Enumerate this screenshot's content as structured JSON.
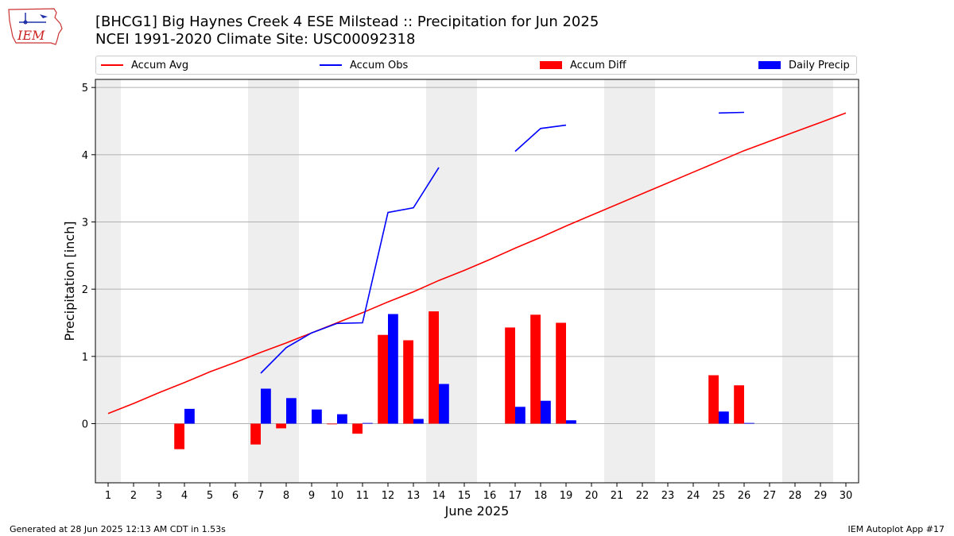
{
  "header": {
    "title_line1": "[BHCG1] Big Haynes Creek 4 ESE Milstead :: Precipitation for Jun 2025",
    "title_line2": "NCEI 1991-2020 Climate Site: USC00092318",
    "logo_text": "IEM"
  },
  "footer": {
    "left": "Generated at 28 Jun 2025 12:13 AM CDT in 1.53s",
    "right": "IEM Autoplot App #17"
  },
  "colors": {
    "accum_avg": "#ff0000",
    "accum_obs": "#0000ff",
    "accum_diff": "#ff0000",
    "daily_precip": "#0000ff",
    "weekend_shade": "#eeeeee",
    "grid": "#b0b0b0"
  },
  "chart_data": {
    "type": "bar",
    "xlabel": "June 2025",
    "ylabel": "Precipitation [inch]",
    "x": [
      1,
      2,
      3,
      4,
      5,
      6,
      7,
      8,
      9,
      10,
      11,
      12,
      13,
      14,
      15,
      16,
      17,
      18,
      19,
      20,
      21,
      22,
      23,
      24,
      25,
      26,
      27,
      28,
      29,
      30
    ],
    "x_tick_labels": [
      "1",
      "2",
      "3",
      "4",
      "5",
      "6",
      "7",
      "8",
      "9",
      "10",
      "11",
      "12",
      "13",
      "14",
      "15",
      "16",
      "17",
      "18",
      "19",
      "20",
      "21",
      "22",
      "23",
      "24",
      "25",
      "26",
      "27",
      "28",
      "29",
      "30"
    ],
    "xlim": [
      0.5,
      30.5
    ],
    "ylim": [
      -0.88,
      5.12
    ],
    "y_ticks": [
      0,
      1,
      2,
      3,
      4,
      5
    ],
    "y_tick_labels": [
      "0",
      "1",
      "2",
      "3",
      "4",
      "5"
    ],
    "grid": "horizontal",
    "legend_position": "top",
    "shaded_days": [
      1,
      7,
      8,
      14,
      15,
      21,
      22,
      28,
      29
    ],
    "legend": [
      "Accum Avg",
      "Accum Obs",
      "Accum Diff",
      "Daily Precip"
    ],
    "series": [
      {
        "name": "Accum Avg",
        "kind": "line",
        "color": "#ff0000",
        "values": [
          0.15,
          0.3,
          0.46,
          0.61,
          0.77,
          0.91,
          1.06,
          1.2,
          1.35,
          1.5,
          1.65,
          1.81,
          1.96,
          2.13,
          2.28,
          2.44,
          2.61,
          2.77,
          2.94,
          3.1,
          3.26,
          3.42,
          3.58,
          3.74,
          3.9,
          4.06,
          4.2,
          4.34,
          4.48,
          4.62
        ]
      },
      {
        "name": "Accum Obs",
        "kind": "line",
        "color": "#0000ff",
        "values": [
          null,
          null,
          null,
          null,
          null,
          null,
          0.75,
          1.13,
          1.35,
          1.49,
          1.5,
          3.14,
          3.21,
          3.81,
          null,
          null,
          4.05,
          4.39,
          4.44,
          null,
          null,
          null,
          null,
          null,
          4.62,
          4.63,
          null,
          null,
          null,
          null
        ]
      },
      {
        "name": "Accum Diff",
        "kind": "bar",
        "color": "#ff0000",
        "values": [
          null,
          null,
          null,
          -0.38,
          null,
          null,
          -0.31,
          -0.07,
          null,
          -0.01,
          -0.15,
          1.32,
          1.24,
          1.67,
          null,
          null,
          1.43,
          1.62,
          1.5,
          null,
          null,
          null,
          null,
          null,
          0.72,
          0.57,
          null,
          null,
          null,
          null
        ]
      },
      {
        "name": "Daily Precip",
        "kind": "bar",
        "color": "#0000ff",
        "values": [
          null,
          null,
          null,
          0.22,
          null,
          null,
          0.52,
          0.38,
          0.21,
          0.14,
          0.01,
          1.63,
          0.07,
          0.59,
          null,
          null,
          0.25,
          0.34,
          0.05,
          null,
          null,
          null,
          null,
          null,
          0.18,
          0.01,
          null,
          null,
          null,
          null
        ]
      }
    ]
  }
}
